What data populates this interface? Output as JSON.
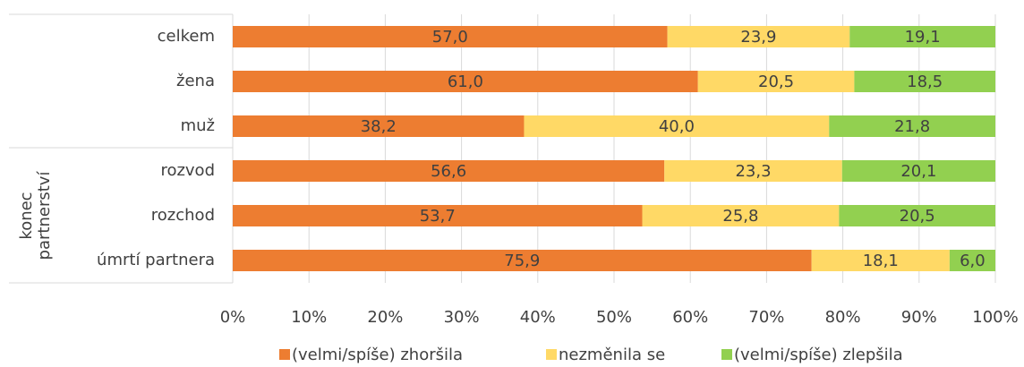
{
  "chart_data": {
    "type": "stacked_bar_horizontal",
    "categories": [
      "celkem",
      "žena",
      "muž",
      "rozvod",
      "rozchod",
      "úmrtí partnera"
    ],
    "group_label": [
      "konec",
      "partnerství"
    ],
    "series": [
      {
        "name": "(velmi/spíše) zhoršila",
        "color": "#ED7D31",
        "values": [
          57.0,
          61.0,
          38.2,
          56.6,
          53.7,
          75.9
        ],
        "value_labels": [
          "57,0",
          "61,0",
          "38,2",
          "56,6",
          "53,7",
          "75,9"
        ]
      },
      {
        "name": "nezměnila se",
        "color": "#FFD966",
        "values": [
          23.9,
          20.5,
          40.0,
          23.3,
          25.8,
          18.1
        ],
        "value_labels": [
          "23,9",
          "20,5",
          "40,0",
          "23,3",
          "25,8",
          "18,1"
        ]
      },
      {
        "name": "(velmi/spíše) zlepšila",
        "color": "#92D050",
        "values": [
          19.1,
          18.5,
          21.8,
          20.1,
          20.5,
          6.0
        ],
        "value_labels": [
          "19,1",
          "18,5",
          "21,8",
          "20,1",
          "20,5",
          "6,0"
        ]
      }
    ],
    "xlim": [
      0,
      100
    ],
    "xticks": [
      {
        "value": 0,
        "label": "0%"
      },
      {
        "value": 10,
        "label": "10%"
      },
      {
        "value": 20,
        "label": "20%"
      },
      {
        "value": 30,
        "label": "30%"
      },
      {
        "value": 40,
        "label": "40%"
      },
      {
        "value": 50,
        "label": "50%"
      },
      {
        "value": 60,
        "label": "60%"
      },
      {
        "value": 70,
        "label": "70%"
      },
      {
        "value": 80,
        "label": "80%"
      },
      {
        "value": 90,
        "label": "90%"
      },
      {
        "value": 100,
        "label": "100%"
      }
    ],
    "grid": true,
    "legend": "bottom"
  }
}
